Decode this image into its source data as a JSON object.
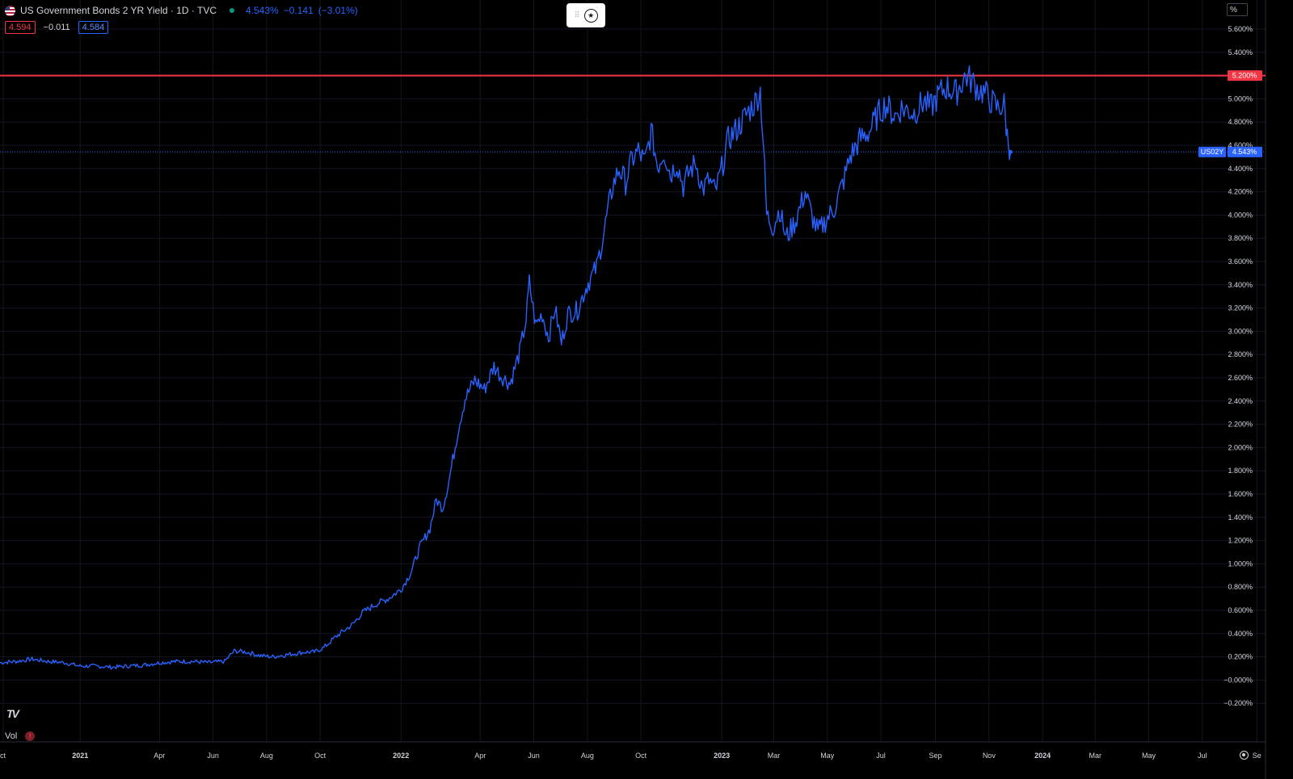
{
  "legend": {
    "title": "US Government Bonds 2 YR Yield · 1D · TVC",
    "last_value": "4.543%",
    "change": "−0.141",
    "change_pct": "(−3.01%)",
    "box_red": "4.594",
    "box_plain": "−0.011",
    "box_blue": "4.584"
  },
  "top_widget": {
    "grip": "⠿",
    "icon": "star-circle-icon"
  },
  "scale_button": "%",
  "volume_label": "Vol",
  "warning_icon": "!",
  "logo_text": "TV",
  "price_tags": {
    "horizontal_line": "5.200%",
    "symbol": "US02Y",
    "last": "4.543%"
  },
  "colors": {
    "series": "#2962ff",
    "hline": "#f23645",
    "background": "#000000",
    "grid": "#131722"
  },
  "chart_data": {
    "type": "line",
    "title": "US Government Bonds 2 YR Yield · 1D · TVC",
    "xlabel": "",
    "ylabel": "",
    "x_time_range": [
      "2020-10",
      "2024-10"
    ],
    "ylim": [
      -0.25,
      5.7
    ],
    "y_ticks": [
      "5.600%",
      "5.400%",
      "5.200%",
      "5.000%",
      "4.800%",
      "4.600%",
      "4.400%",
      "4.200%",
      "4.000%",
      "3.800%",
      "3.600%",
      "3.400%",
      "3.200%",
      "3.000%",
      "2.800%",
      "2.600%",
      "2.400%",
      "2.200%",
      "2.000%",
      "1.800%",
      "1.600%",
      "1.400%",
      "1.200%",
      "1.000%",
      "0.800%",
      "0.600%",
      "0.400%",
      "0.200%",
      "−0.000%",
      "−0.200%"
    ],
    "x_ticks": [
      {
        "label": "ct",
        "t": 2020.76
      },
      {
        "label": "2021",
        "t": 2021.0
      },
      {
        "label": "Apr",
        "t": 2021.247
      },
      {
        "label": "Jun",
        "t": 2021.414
      },
      {
        "label": "Aug",
        "t": 2021.581
      },
      {
        "label": "Oct",
        "t": 2021.748
      },
      {
        "label": "2022",
        "t": 2022.0
      },
      {
        "label": "Apr",
        "t": 2022.247
      },
      {
        "label": "Jun",
        "t": 2022.414
      },
      {
        "label": "Aug",
        "t": 2022.581
      },
      {
        "label": "Oct",
        "t": 2022.748
      },
      {
        "label": "2023",
        "t": 2023.0
      },
      {
        "label": "Mar",
        "t": 2023.162
      },
      {
        "label": "May",
        "t": 2023.329
      },
      {
        "label": "Jul",
        "t": 2023.496
      },
      {
        "label": "Sep",
        "t": 2023.666
      },
      {
        "label": "Nov",
        "t": 2023.833
      },
      {
        "label": "2024",
        "t": 2024.0
      },
      {
        "label": "Mar",
        "t": 2024.164
      },
      {
        "label": "May",
        "t": 2024.331
      },
      {
        "label": "Jul",
        "t": 2024.498
      },
      {
        "label": "Se",
        "t": 2024.668
      }
    ],
    "hline_value": 5.2,
    "last_value": 4.543,
    "grid": true,
    "series": [
      {
        "points": [
          [
            2020.75,
            0.15
          ],
          [
            2020.8,
            0.16
          ],
          [
            2020.85,
            0.18
          ],
          [
            2020.9,
            0.16
          ],
          [
            2020.95,
            0.15
          ],
          [
            2021.0,
            0.12
          ],
          [
            2021.05,
            0.12
          ],
          [
            2021.1,
            0.11
          ],
          [
            2021.15,
            0.12
          ],
          [
            2021.2,
            0.13
          ],
          [
            2021.25,
            0.15
          ],
          [
            2021.3,
            0.16
          ],
          [
            2021.35,
            0.16
          ],
          [
            2021.4,
            0.15
          ],
          [
            2021.45,
            0.16
          ],
          [
            2021.48,
            0.25
          ],
          [
            2021.52,
            0.24
          ],
          [
            2021.56,
            0.21
          ],
          [
            2021.6,
            0.2
          ],
          [
            2021.65,
            0.22
          ],
          [
            2021.7,
            0.24
          ],
          [
            2021.73,
            0.24
          ],
          [
            2021.76,
            0.28
          ],
          [
            2021.8,
            0.38
          ],
          [
            2021.85,
            0.48
          ],
          [
            2021.88,
            0.58
          ],
          [
            2021.92,
            0.65
          ],
          [
            2021.96,
            0.7
          ],
          [
            2022.0,
            0.78
          ],
          [
            2022.03,
            0.92
          ],
          [
            2022.06,
            1.15
          ],
          [
            2022.09,
            1.3
          ],
          [
            2022.11,
            1.55
          ],
          [
            2022.13,
            1.48
          ],
          [
            2022.15,
            1.72
          ],
          [
            2022.18,
            2.18
          ],
          [
            2022.2,
            2.42
          ],
          [
            2022.23,
            2.58
          ],
          [
            2022.26,
            2.5
          ],
          [
            2022.29,
            2.7
          ],
          [
            2022.31,
            2.62
          ],
          [
            2022.34,
            2.55
          ],
          [
            2022.37,
            2.82
          ],
          [
            2022.39,
            3.1
          ],
          [
            2022.4,
            3.42
          ],
          [
            2022.42,
            3.05
          ],
          [
            2022.44,
            3.15
          ],
          [
            2022.46,
            2.95
          ],
          [
            2022.48,
            3.2
          ],
          [
            2022.5,
            2.9
          ],
          [
            2022.52,
            3.15
          ],
          [
            2022.55,
            3.18
          ],
          [
            2022.58,
            3.4
          ],
          [
            2022.61,
            3.55
          ],
          [
            2022.63,
            3.82
          ],
          [
            2022.66,
            4.25
          ],
          [
            2022.68,
            4.4
          ],
          [
            2022.7,
            4.28
          ],
          [
            2022.72,
            4.48
          ],
          [
            2022.74,
            4.55
          ],
          [
            2022.76,
            4.45
          ],
          [
            2022.78,
            4.72
          ],
          [
            2022.8,
            4.42
          ],
          [
            2022.82,
            4.55
          ],
          [
            2022.84,
            4.35
          ],
          [
            2022.86,
            4.45
          ],
          [
            2022.88,
            4.25
          ],
          [
            2022.9,
            4.38
          ],
          [
            2022.92,
            4.45
          ],
          [
            2022.94,
            4.22
          ],
          [
            2022.96,
            4.3
          ],
          [
            2022.98,
            4.2
          ],
          [
            2023.0,
            4.4
          ],
          [
            2023.02,
            4.65
          ],
          [
            2023.05,
            4.75
          ],
          [
            2023.08,
            4.88
          ],
          [
            2023.1,
            4.95
          ],
          [
            2023.12,
            5.07
          ],
          [
            2023.13,
            4.6
          ],
          [
            2023.14,
            4.0
          ],
          [
            2023.16,
            3.9
          ],
          [
            2023.18,
            4.05
          ],
          [
            2023.2,
            3.8
          ],
          [
            2023.23,
            3.95
          ],
          [
            2023.26,
            4.2
          ],
          [
            2023.28,
            4.0
          ],
          [
            2023.3,
            3.85
          ],
          [
            2023.33,
            3.98
          ],
          [
            2023.35,
            4.05
          ],
          [
            2023.38,
            4.3
          ],
          [
            2023.4,
            4.5
          ],
          [
            2023.43,
            4.65
          ],
          [
            2023.46,
            4.72
          ],
          [
            2023.49,
            4.88
          ],
          [
            2023.51,
            4.95
          ],
          [
            2023.54,
            4.85
          ],
          [
            2023.56,
            4.92
          ],
          [
            2023.6,
            4.88
          ],
          [
            2023.63,
            4.98
          ],
          [
            2023.65,
            4.92
          ],
          [
            2023.68,
            5.05
          ],
          [
            2023.7,
            5.1
          ],
          [
            2023.73,
            5.05
          ],
          [
            2023.76,
            5.2
          ],
          [
            2023.78,
            5.15
          ],
          [
            2023.8,
            5.08
          ],
          [
            2023.82,
            5.05
          ],
          [
            2023.84,
            4.98
          ],
          [
            2023.86,
            4.92
          ],
          [
            2023.88,
            4.95
          ],
          [
            2023.89,
            4.68
          ],
          [
            2023.9,
            4.543
          ]
        ]
      }
    ]
  }
}
